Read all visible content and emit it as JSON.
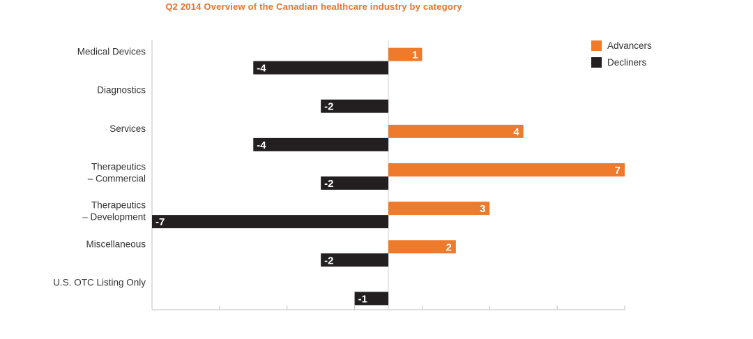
{
  "chart_data": {
    "type": "bar",
    "orientation": "horizontal",
    "title": "Q2 2014 Overview of the Canadian healthcare industry by category",
    "categories": [
      [
        "Medical Devices"
      ],
      [
        "Diagnostics"
      ],
      [
        "Services"
      ],
      [
        "Therapeutics",
        "– Commercial"
      ],
      [
        "Therapeutics",
        "– Development"
      ],
      [
        "Miscellaneous"
      ],
      [
        "U.S. OTC Listing Only"
      ]
    ],
    "series": [
      {
        "name": "Advancers",
        "color": "#ee7a2b",
        "values": [
          1,
          null,
          4,
          7,
          3,
          2,
          null
        ]
      },
      {
        "name": "Decliners",
        "color": "#231f20",
        "values": [
          -4,
          -2,
          -4,
          -2,
          -7,
          -2,
          -1
        ]
      }
    ],
    "xlim": [
      -7,
      7
    ],
    "legend_position": "top-right",
    "grid": false
  }
}
